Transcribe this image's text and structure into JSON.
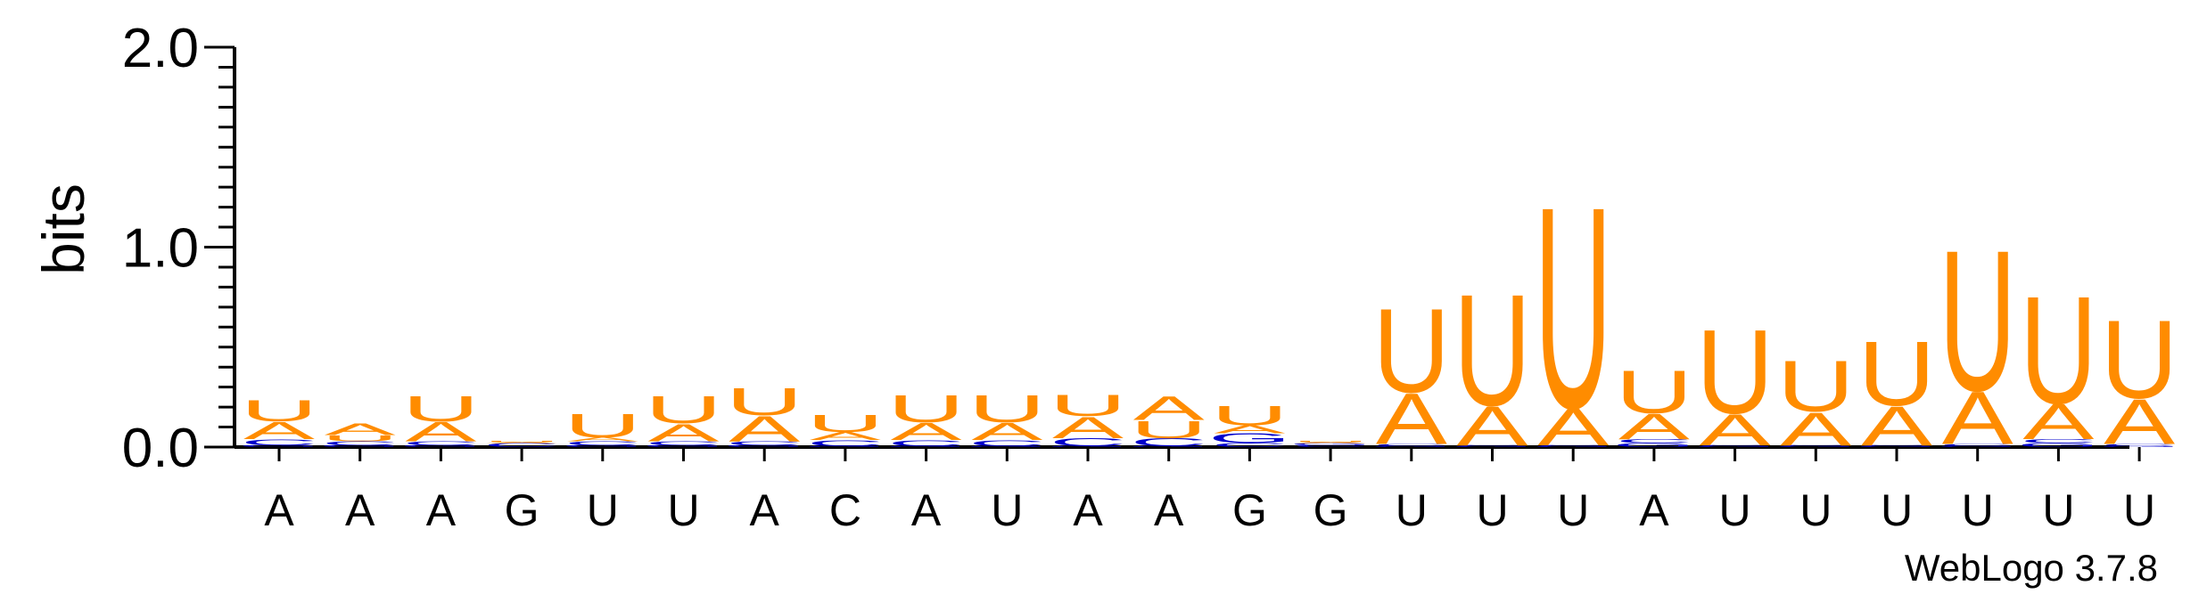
{
  "chart_data": {
    "type": "sequence-logo",
    "title": "",
    "ylabel": "bits",
    "xlabel": "",
    "ylim": [
      0,
      2.0
    ],
    "yticks": [
      "0.0",
      "1.0",
      "2.0"
    ],
    "consensus": [
      "A",
      "A",
      "A",
      "G",
      "U",
      "U",
      "A",
      "C",
      "A",
      "U",
      "A",
      "A",
      "G",
      "G",
      "U",
      "U",
      "U",
      "A",
      "U",
      "U",
      "U",
      "U",
      "U",
      "U"
    ],
    "colors": {
      "A": "#ff8c00",
      "U": "#ff8c00",
      "C": "#0000cc",
      "G": "#0000cc"
    },
    "stacks": [
      [
        {
          "l": "G",
          "h": 0.01
        },
        {
          "l": "C",
          "h": 0.03
        },
        {
          "l": "A",
          "h": 0.09
        },
        {
          "l": "U",
          "h": 0.11
        }
      ],
      [
        {
          "l": "G",
          "h": 0.01
        },
        {
          "l": "C",
          "h": 0.02
        },
        {
          "l": "U",
          "h": 0.03
        },
        {
          "l": "A",
          "h": 0.06
        }
      ],
      [
        {
          "l": "G",
          "h": 0.01
        },
        {
          "l": "C",
          "h": 0.02
        },
        {
          "l": "A",
          "h": 0.1
        },
        {
          "l": "U",
          "h": 0.13
        }
      ],
      [
        {
          "l": "C",
          "h": 0.02
        },
        {
          "l": "A",
          "h": 0.005
        },
        {
          "l": "U",
          "h": 0.005
        }
      ],
      [
        {
          "l": "G",
          "h": 0.01
        },
        {
          "l": "C",
          "h": 0.02
        },
        {
          "l": "A",
          "h": 0.02
        },
        {
          "l": "U",
          "h": 0.12
        }
      ],
      [
        {
          "l": "G",
          "h": 0.01
        },
        {
          "l": "C",
          "h": 0.02
        },
        {
          "l": "A",
          "h": 0.09
        },
        {
          "l": "U",
          "h": 0.14
        }
      ],
      [
        {
          "l": "G",
          "h": 0.01
        },
        {
          "l": "C",
          "h": 0.02
        },
        {
          "l": "A",
          "h": 0.13
        },
        {
          "l": "U",
          "h": 0.14
        }
      ],
      [
        {
          "l": "G",
          "h": 0.005
        },
        {
          "l": "C",
          "h": 0.03
        },
        {
          "l": "A",
          "h": 0.04
        },
        {
          "l": "U",
          "h": 0.09
        }
      ],
      [
        {
          "l": "G",
          "h": 0.005
        },
        {
          "l": "C",
          "h": 0.03
        },
        {
          "l": "A",
          "h": 0.09
        },
        {
          "l": "U",
          "h": 0.14
        }
      ],
      [
        {
          "l": "G",
          "h": 0.005
        },
        {
          "l": "C",
          "h": 0.03
        },
        {
          "l": "A",
          "h": 0.09
        },
        {
          "l": "U",
          "h": 0.14
        }
      ],
      [
        {
          "l": "G",
          "h": 0.005
        },
        {
          "l": "C",
          "h": 0.04
        },
        {
          "l": "A",
          "h": 0.11
        },
        {
          "l": "U",
          "h": 0.11
        }
      ],
      [
        {
          "l": "G",
          "h": 0.005
        },
        {
          "l": "C",
          "h": 0.04
        },
        {
          "l": "U",
          "h": 0.09
        },
        {
          "l": "A",
          "h": 0.12
        }
      ],
      [
        {
          "l": "C",
          "h": 0.02
        },
        {
          "l": "G",
          "h": 0.05
        },
        {
          "l": "A",
          "h": 0.04
        },
        {
          "l": "U",
          "h": 0.1
        }
      ],
      [
        {
          "l": "C",
          "h": 0.01
        },
        {
          "l": "G",
          "h": 0.01
        },
        {
          "l": "A",
          "h": 0.005
        },
        {
          "l": "U",
          "h": 0.005
        }
      ],
      [
        {
          "l": "G",
          "h": 0.005
        },
        {
          "l": "C",
          "h": 0.01
        },
        {
          "l": "A",
          "h": 0.26
        },
        {
          "l": "U",
          "h": 0.43
        }
      ],
      [
        {
          "l": "G",
          "h": 0.005
        },
        {
          "l": "C",
          "h": 0.005
        },
        {
          "l": "A",
          "h": 0.2
        },
        {
          "l": "U",
          "h": 0.57
        }
      ],
      [
        {
          "l": "G",
          "h": 0.005
        },
        {
          "l": "C",
          "h": 0.005
        },
        {
          "l": "A",
          "h": 0.19
        },
        {
          "l": "U",
          "h": 1.03
        }
      ],
      [
        {
          "l": "G",
          "h": 0.02
        },
        {
          "l": "C",
          "h": 0.02
        },
        {
          "l": "A",
          "h": 0.13
        },
        {
          "l": "U",
          "h": 0.22
        }
      ],
      [
        {
          "l": "G",
          "h": 0.005
        },
        {
          "l": "C",
          "h": 0.005
        },
        {
          "l": "A",
          "h": 0.16
        },
        {
          "l": "U",
          "h": 0.43
        }
      ],
      [
        {
          "l": "G",
          "h": 0.005
        },
        {
          "l": "C",
          "h": 0.005
        },
        {
          "l": "A",
          "h": 0.17
        },
        {
          "l": "U",
          "h": 0.26
        }
      ],
      [
        {
          "l": "G",
          "h": 0.005
        },
        {
          "l": "C",
          "h": 0.005
        },
        {
          "l": "A",
          "h": 0.2
        },
        {
          "l": "U",
          "h": 0.33
        }
      ],
      [
        {
          "l": "G",
          "h": 0.005
        },
        {
          "l": "C",
          "h": 0.01
        },
        {
          "l": "A",
          "h": 0.27
        },
        {
          "l": "U",
          "h": 0.72
        }
      ],
      [
        {
          "l": "G",
          "h": 0.02
        },
        {
          "l": "C",
          "h": 0.02
        },
        {
          "l": "A",
          "h": 0.18
        },
        {
          "l": "U",
          "h": 0.55
        }
      ],
      [
        {
          "l": "G",
          "h": 0.005
        },
        {
          "l": "C",
          "h": 0.01
        },
        {
          "l": "A",
          "h": 0.23
        },
        {
          "l": "U",
          "h": 0.4
        }
      ]
    ],
    "credit": "WebLogo 3.7.8"
  }
}
